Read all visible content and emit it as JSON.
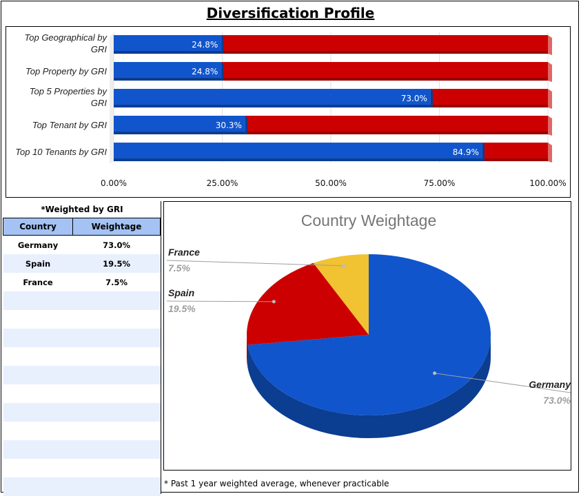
{
  "title": "Diversification Profile",
  "colors": {
    "blue": "#1155cc",
    "red": "#cc0000",
    "yellow": "#f1c232",
    "header_bg": "#a4c2f4",
    "stripe": "#e8f0fe"
  },
  "chart_data": [
    {
      "type": "bar",
      "orientation": "horizontal",
      "stacked": true,
      "categories": [
        "Top Geographical by GRI",
        "Top Property by GRI",
        "Top 5 Properties by GRI",
        "Top Tenant by GRI",
        "Top 10 Tenants by GRI"
      ],
      "category_lines": [
        [
          "Top Geographical by",
          "GRI"
        ],
        [
          "Top Property by GRI"
        ],
        [
          "Top 5 Properties by",
          "GRI"
        ],
        [
          "Top Tenant by GRI"
        ],
        [
          "Top 10 Tenants by GRI"
        ]
      ],
      "series": [
        {
          "name": "Share",
          "values": [
            24.8,
            24.8,
            73.0,
            30.3,
            84.9
          ]
        },
        {
          "name": "Remainder",
          "values": [
            75.2,
            75.2,
            27.0,
            69.7,
            15.1
          ]
        }
      ],
      "data_labels": [
        "24.8%",
        "24.8%",
        "73.0%",
        "30.3%",
        "84.9%"
      ],
      "xlim": [
        0,
        100
      ],
      "x_ticks": [
        "0.00%",
        "25.00%",
        "50.00%",
        "75.00%",
        "100.00%"
      ]
    },
    {
      "type": "pie",
      "title": "Country Weightage",
      "labels": [
        "Germany",
        "Spain",
        "France"
      ],
      "values": [
        73.0,
        19.5,
        7.5
      ],
      "pct_labels": [
        "73.0%",
        "19.5%",
        "7.5%"
      ]
    }
  ],
  "table": {
    "caption": "*Weighted by GRI",
    "headers": [
      "Country",
      "Weightage"
    ],
    "rows": [
      [
        "Germany",
        "73.0%"
      ],
      [
        "Spain",
        "19.5%"
      ],
      [
        "France",
        "7.5%"
      ]
    ],
    "empty_rows": 11
  },
  "footnote": "* Past 1 year weighted average, whenever practicable"
}
